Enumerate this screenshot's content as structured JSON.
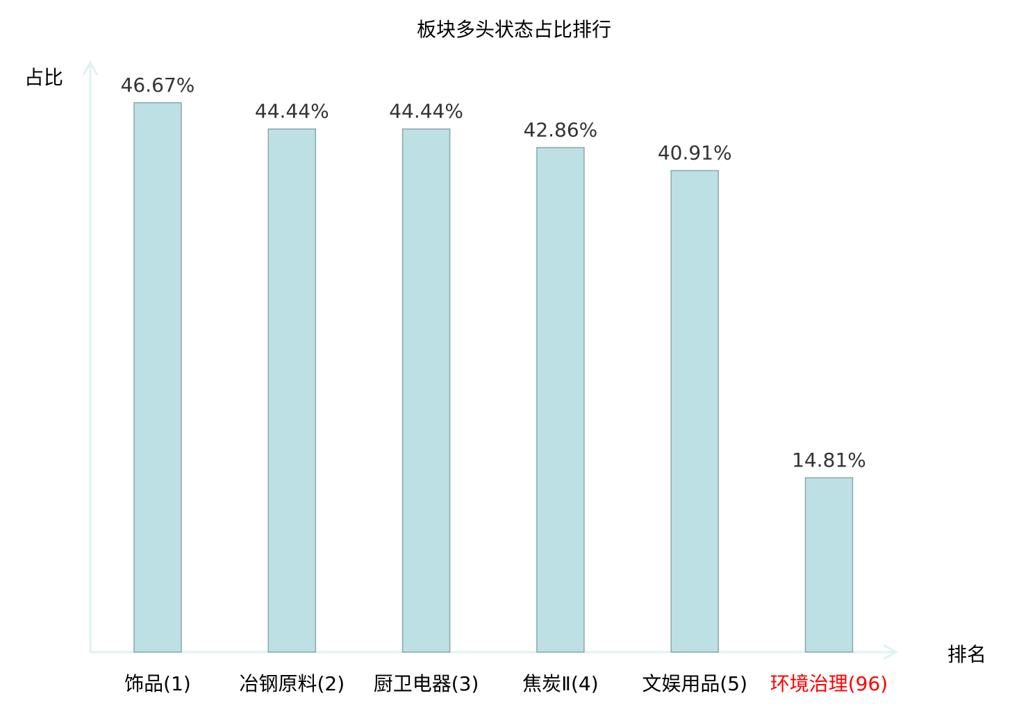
{
  "chart_data": {
    "type": "bar",
    "title": "板块多头状态占比排行",
    "xlabel": "排名",
    "ylabel": "占比",
    "categories": [
      "饰品(1)",
      "冶钢原料(2)",
      "厨卫电器(3)",
      "焦炭Ⅱ(4)",
      "文娱用品(5)",
      "环境治理(96)"
    ],
    "values": [
      46.67,
      44.44,
      44.44,
      42.86,
      40.91,
      14.81
    ],
    "data_labels": [
      "46.67%",
      "44.44%",
      "44.44%",
      "42.86%",
      "40.91%",
      "14.81%"
    ],
    "highlight_index": 5,
    "ylim": [
      0,
      50
    ],
    "grid": false,
    "colors": {
      "bar_fill": "#bce0e3",
      "bar_stroke": "#8aa8a8",
      "axis": "#dff2ef",
      "label": "#000000",
      "value_label": "#333333",
      "highlight": "#ff0000"
    }
  }
}
